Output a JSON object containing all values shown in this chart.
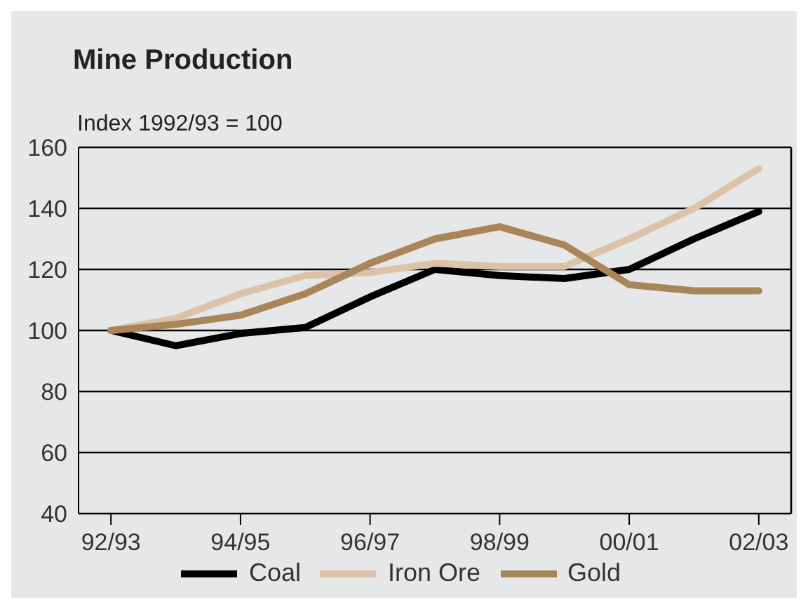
{
  "chart_data": {
    "type": "line",
    "title": "Mine Production",
    "ylabel": "Index 1992/93 = 100",
    "categories": [
      "92/93",
      null,
      "94/95",
      null,
      "96/97",
      null,
      "98/99",
      null,
      "00/01",
      null,
      "02/03"
    ],
    "series": [
      {
        "name": "Coal",
        "color": "#000000",
        "values": [
          100,
          95,
          99,
          101,
          111,
          120,
          118,
          117,
          120,
          130,
          139
        ]
      },
      {
        "name": "Iron Ore",
        "color": "#dcc3a8",
        "values": [
          100,
          104,
          112,
          118,
          119,
          122,
          121,
          121,
          130,
          140,
          153
        ]
      },
      {
        "name": "Gold",
        "color": "#a98559",
        "values": [
          100,
          102,
          105,
          112,
          122,
          130,
          134,
          128,
          115,
          113,
          113
        ]
      }
    ],
    "ylim": [
      40,
      160
    ],
    "yticks": [
      40,
      60,
      80,
      100,
      120,
      140,
      160
    ],
    "grid": "y",
    "legend": "bottom",
    "marker": "none",
    "line_style": "solid"
  }
}
